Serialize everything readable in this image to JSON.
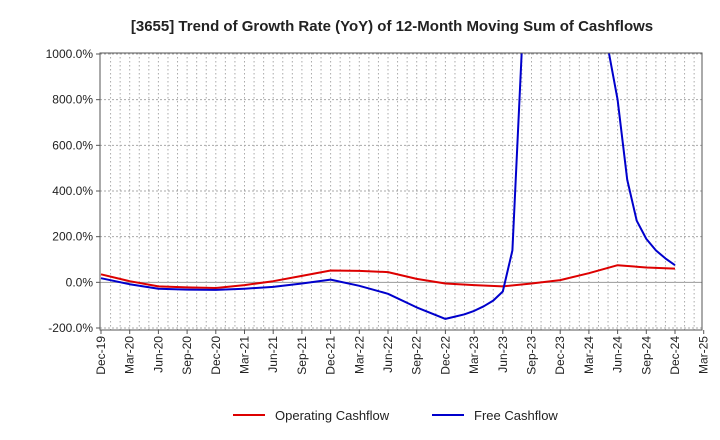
{
  "chart_data": {
    "type": "line",
    "title": "[3655]  Trend of Growth Rate (YoY) of 12-Month Moving Sum of Cashflows",
    "xlabel": "",
    "ylabel": "",
    "ylim": [
      -200,
      1000
    ],
    "y_ticks": [
      "1000.0%",
      "800.0%",
      "600.0%",
      "400.0%",
      "200.0%",
      "0.0%",
      "-200.0%"
    ],
    "y_tick_values": [
      1000,
      800,
      600,
      400,
      200,
      0,
      -200
    ],
    "x_tick_labels": [
      "Dec-19",
      "Mar-20",
      "Jun-20",
      "Sep-20",
      "Dec-20",
      "Mar-21",
      "Jun-21",
      "Sep-21",
      "Dec-21",
      "Mar-22",
      "Jun-22",
      "Sep-22",
      "Dec-22",
      "Mar-23",
      "Jun-23",
      "Sep-23",
      "Dec-23",
      "Mar-24",
      "Jun-24",
      "Sep-24",
      "Dec-24",
      "Mar-25"
    ],
    "grid": true,
    "legend_position": "bottom-center",
    "series": [
      {
        "name": "Operating Cashflow",
        "color": "#dd0000",
        "points": [
          [
            "2019-12",
            35
          ],
          [
            "2020-03",
            5
          ],
          [
            "2020-06",
            -18
          ],
          [
            "2020-09",
            -22
          ],
          [
            "2020-12",
            -25
          ],
          [
            "2021-03",
            -12
          ],
          [
            "2021-06",
            5
          ],
          [
            "2021-09",
            28
          ],
          [
            "2021-12",
            52
          ],
          [
            "2022-03",
            50
          ],
          [
            "2022-06",
            45
          ],
          [
            "2022-09",
            15
          ],
          [
            "2022-12",
            -5
          ],
          [
            "2023-03",
            -12
          ],
          [
            "2023-06",
            -18
          ],
          [
            "2023-09",
            -5
          ],
          [
            "2023-12",
            10
          ],
          [
            "2024-03",
            40
          ],
          [
            "2024-06",
            75
          ],
          [
            "2024-09",
            65
          ],
          [
            "2024-12",
            60
          ]
        ]
      },
      {
        "name": "Free Cashflow",
        "color": "#0000cc",
        "points": [
          [
            "2019-12",
            18
          ],
          [
            "2020-03",
            -8
          ],
          [
            "2020-06",
            -28
          ],
          [
            "2020-09",
            -32
          ],
          [
            "2020-12",
            -33
          ],
          [
            "2021-03",
            -28
          ],
          [
            "2021-06",
            -20
          ],
          [
            "2021-09",
            -5
          ],
          [
            "2021-12",
            12
          ],
          [
            "2022-03",
            -15
          ],
          [
            "2022-06",
            -50
          ],
          [
            "2022-09",
            -110
          ],
          [
            "2022-12",
            -160
          ],
          [
            "2023-01",
            -150
          ],
          [
            "2023-02",
            -140
          ],
          [
            "2023-03",
            -125
          ],
          [
            "2023-04",
            -105
          ],
          [
            "2023-05",
            -80
          ],
          [
            "2023-06",
            -40
          ],
          [
            "2023-07",
            140
          ],
          [
            "2023-08",
            1000
          ],
          [
            "2024-05",
            1000
          ],
          [
            "2024-06",
            800
          ],
          [
            "2024-07",
            450
          ],
          [
            "2024-08",
            270
          ],
          [
            "2024-09",
            190
          ],
          [
            "2024-10",
            140
          ],
          [
            "2024-11",
            105
          ],
          [
            "2024-12",
            75
          ]
        ]
      }
    ]
  }
}
